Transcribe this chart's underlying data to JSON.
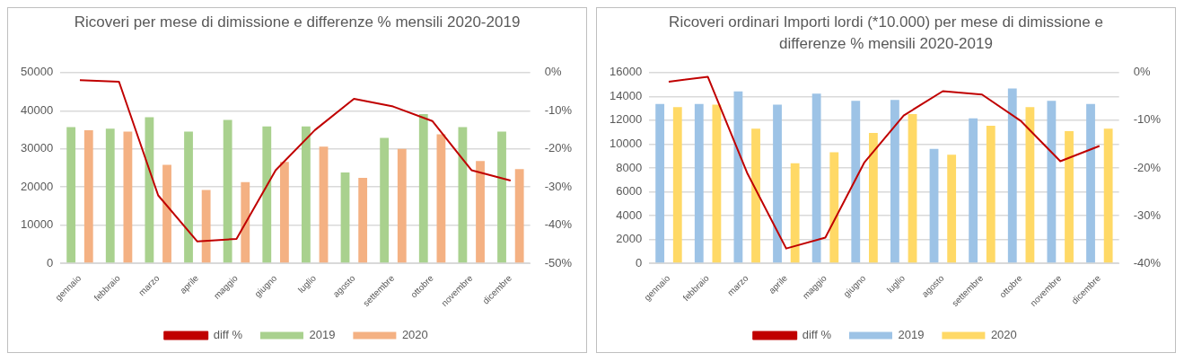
{
  "chart_data": [
    {
      "type": "bar",
      "title": "Ricoveri per mese di dimissione e differenze % mensili 2020-2019",
      "categories": [
        "gennaio",
        "febbraio",
        "marzo",
        "aprile",
        "maggio",
        "giugno",
        "luglio",
        "agosto",
        "settembre",
        "ottobre",
        "novembre",
        "dicembre"
      ],
      "series": [
        {
          "name": "2019",
          "color": "#a9d18e",
          "values": [
            35700,
            35300,
            38300,
            34500,
            37600,
            35900,
            35900,
            23800,
            32900,
            39100,
            35700,
            34500
          ]
        },
        {
          "name": "2020",
          "color": "#f4b183",
          "values": [
            34900,
            34500,
            25800,
            19200,
            21300,
            26600,
            30600,
            22400,
            30000,
            33800,
            26800,
            24700
          ]
        },
        {
          "name": "diff %",
          "type": "line",
          "axis": "y2",
          "color": "#c00000",
          "values": [
            -2.0,
            -2.4,
            -32.2,
            -44.3,
            -43.6,
            -25.6,
            -15.1,
            -6.9,
            -8.9,
            -12.7,
            -25.6,
            -28.3
          ]
        }
      ],
      "ylim": [
        0,
        50000
      ],
      "yticks": [
        0,
        10000,
        20000,
        30000,
        40000,
        50000
      ],
      "y2lim": [
        -50,
        0
      ],
      "y2ticks": [
        {
          "value": 0,
          "label": "0%"
        },
        {
          "value": -10,
          "label": "-10%"
        },
        {
          "value": -20,
          "label": "-20%"
        },
        {
          "value": -30,
          "label": "-30%"
        },
        {
          "value": -40,
          "label": "-40%"
        },
        {
          "value": -50,
          "label": "-50%"
        }
      ],
      "grid": "y",
      "legend": "bottom",
      "marker": "none"
    },
    {
      "type": "bar",
      "title": "Ricoveri ordinari Importi lordi (*10.000) per mese di dimissione e differenze % mensili 2020-2019",
      "categories": [
        "gennaio",
        "febbraio",
        "marzo",
        "aprile",
        "maggio",
        "giugno",
        "luglio",
        "agosto",
        "settembre",
        "ottobre",
        "novembre",
        "dicembre"
      ],
      "series": [
        {
          "name": "2019",
          "color": "#9dc3e6",
          "values": [
            13360,
            13360,
            14430,
            13310,
            14230,
            13630,
            13710,
            9590,
            12160,
            14660,
            13630,
            13360
          ]
        },
        {
          "name": "2020",
          "color": "#ffd966",
          "values": [
            13110,
            13310,
            11290,
            8390,
            9310,
            10940,
            12510,
            9110,
            11540,
            13110,
            11090,
            11290
          ]
        },
        {
          "name": "diff %",
          "type": "line",
          "axis": "y2",
          "color": "#c00000",
          "values": [
            -1.9,
            -0.9,
            -21.0,
            -36.9,
            -34.6,
            -18.8,
            -9.0,
            -3.9,
            -4.6,
            -10.2,
            -18.6,
            -15.4
          ]
        }
      ],
      "ylim": [
        0,
        16000
      ],
      "yticks": [
        0,
        2000,
        4000,
        6000,
        8000,
        10000,
        12000,
        14000,
        16000
      ],
      "y2lim": [
        -40,
        0
      ],
      "y2ticks": [
        {
          "value": 0,
          "label": "0%"
        },
        {
          "value": -10,
          "label": "-10%"
        },
        {
          "value": -20,
          "label": "-20%"
        },
        {
          "value": -30,
          "label": "-30%"
        },
        {
          "value": -40,
          "label": "-40%"
        }
      ],
      "grid": "y",
      "legend": "bottom",
      "marker": "none"
    }
  ]
}
